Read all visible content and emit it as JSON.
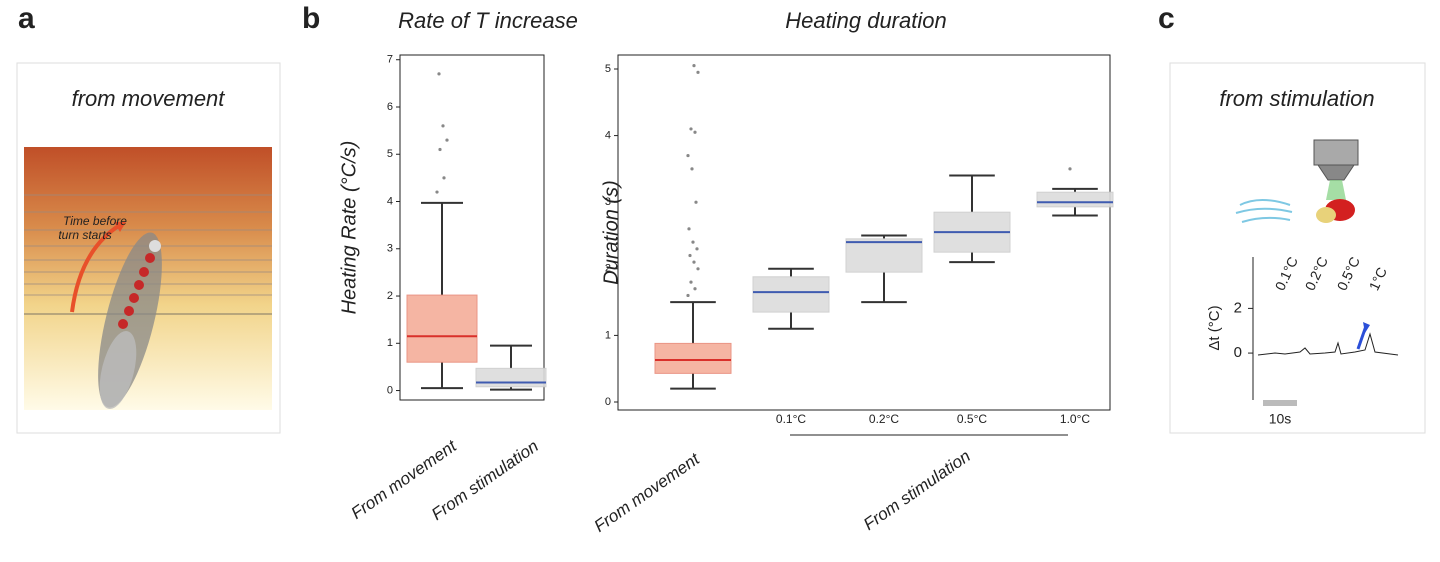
{
  "panel_labels": [
    "a",
    "b",
    "c"
  ],
  "panel_a": {
    "title": "from movement",
    "annotation": [
      "Time before",
      "turn starts"
    ]
  },
  "panel_c": {
    "title": "from stimulation",
    "trace_labels": [
      "0.1°C",
      "0.2°C",
      "0.5°C",
      "1°C"
    ],
    "y_label": "Δt (°C)",
    "ylim": [
      -2.1,
      4.3
    ],
    "yticks": [
      0,
      2
    ],
    "scale_bar": "10s"
  },
  "chart_data": [
    {
      "type": "box",
      "title": "Rate of T increase",
      "y_label": "Heating Rate (°C/s)",
      "categories": [
        "From movement",
        "From stimulation"
      ],
      "whislo": [
        0.05,
        0.02
      ],
      "q1": [
        0.6,
        0.08
      ],
      "median": [
        1.15,
        0.17
      ],
      "q3": [
        2.02,
        0.47
      ],
      "whishi": [
        3.97,
        0.95
      ],
      "outliers": [
        [
          4.2,
          4.5,
          5.1,
          5.3,
          5.6,
          6.7
        ],
        []
      ],
      "box_colors": [
        "#f4ad9a",
        "#dcdcdc"
      ],
      "median_colors": [
        "#d9302a",
        "#3f5bb0"
      ],
      "ylim": [
        -0.2,
        7.1
      ],
      "yticks": [
        0,
        1,
        2,
        3,
        4,
        5,
        6,
        7
      ]
    },
    {
      "type": "box",
      "title": "Heating duration",
      "y_label": "Duration (s)",
      "categories": [
        "From movement",
        "0.1°C",
        "0.2°C",
        "0.5°C",
        "1.0°C"
      ],
      "group_label": "From stimulation",
      "whislo": [
        0.2,
        1.1,
        1.5,
        2.1,
        2.8
      ],
      "q1": [
        0.43,
        1.35,
        1.95,
        2.25,
        2.93
      ],
      "median": [
        0.63,
        1.65,
        2.4,
        2.55,
        3.0
      ],
      "q3": [
        0.88,
        1.88,
        2.45,
        2.85,
        3.15
      ],
      "whishi": [
        1.5,
        2.0,
        2.5,
        3.4,
        3.2
      ],
      "outliers": [
        [
          1.6,
          1.7,
          1.8,
          2.0,
          2.1,
          2.2,
          2.3,
          2.4,
          2.6,
          3.0,
          3.5,
          3.7,
          4.05,
          4.1,
          4.95,
          5.05
        ],
        [],
        [],
        [],
        [
          3.5
        ]
      ],
      "box_colors": [
        "#f4ad9a",
        "#dcdcdc",
        "#dcdcdc",
        "#dcdcdc",
        "#dcdcdc"
      ],
      "median_colors": [
        "#d9302a",
        "#3f5bb0",
        "#3f5bb0",
        "#3f5bb0",
        "#3f5bb0"
      ],
      "ylim": [
        -0.12,
        5.21
      ],
      "yticks": [
        0,
        1,
        2,
        3,
        4,
        5
      ]
    }
  ]
}
